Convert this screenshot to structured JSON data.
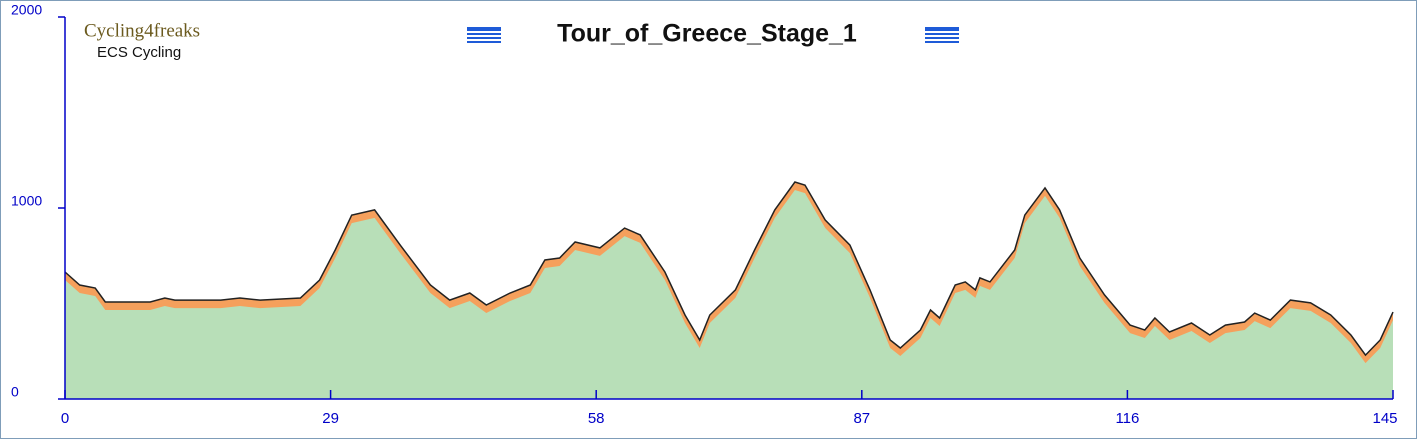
{
  "chart_data": {
    "type": "area",
    "title": "Tour_of_Greece_Stage_1",
    "watermark": "Cycling4freaks",
    "subtitle": "ECS Cycling",
    "x": [
      0,
      1.6,
      3.3,
      4.4,
      9.3,
      10.9,
      12,
      17,
      19.1,
      21.3,
      25.7,
      27.8,
      29.5,
      31.3,
      33.8,
      36.6,
      39.9,
      42,
      44.2,
      46,
      48.6,
      50.8,
      52.4,
      54,
      55.7,
      58.4,
      61.1,
      62.8,
      65.5,
      67.7,
      69.3,
      70.4,
      73.2,
      75.3,
      77.5,
      79.7,
      80.8,
      83,
      85.7,
      87.9,
      90.1,
      91.2,
      93.4,
      94.5,
      95.5,
      97.2,
      98.3,
      99.4,
      99.9,
      101,
      103.7,
      104.8,
      107,
      108.6,
      110.8,
      113.5,
      116.3,
      117.9,
      119,
      120.6,
      123,
      125,
      126.7,
      128.8,
      129.9,
      131.6,
      133.8,
      136,
      138.2,
      140.4,
      142,
      143.6,
      145
    ],
    "values": [
      665,
      597,
      581,
      508,
      508,
      529,
      518,
      518,
      529,
      518,
      529,
      623,
      780,
      963,
      990,
      806,
      597,
      518,
      555,
      492,
      555,
      597,
      728,
      738,
      822,
      791,
      895,
      859,
      665,
      440,
      309,
      440,
      571,
      780,
      990,
      1136,
      1120,
      937,
      806,
      571,
      309,
      267,
      361,
      466,
      424,
      597,
      613,
      571,
      634,
      613,
      780,
      963,
      1105,
      990,
      738,
      545,
      387,
      361,
      424,
      351,
      398,
      335,
      387,
      403,
      450,
      413,
      518,
      503,
      440,
      335,
      230,
      309,
      455
    ],
    "color": "#b8dfb8",
    "band_color": "#f5a05c",
    "line_color": "#222222",
    "xlim": [
      0,
      145
    ],
    "xticks": [
      0,
      29,
      58,
      87,
      116,
      145
    ],
    "ylim": [
      0,
      2000
    ],
    "yticks": [
      0,
      1000,
      2000
    ]
  }
}
